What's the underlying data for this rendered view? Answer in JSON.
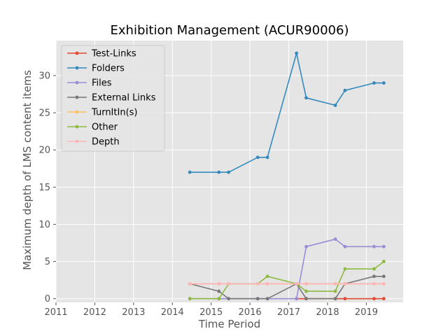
{
  "chart_data": {
    "type": "line",
    "title": "Exhibition Management (ACUR90006)",
    "xlabel": "Time Period",
    "ylabel": "Maximum depth of LMS content items",
    "xlim": [
      2011,
      2019.95
    ],
    "ylim": [
      -0.5,
      34.7
    ],
    "x_ticks": [
      2011,
      2012,
      2013,
      2014,
      2015,
      2016,
      2017,
      2018,
      2019
    ],
    "y_ticks": [
      0,
      5,
      10,
      15,
      20,
      25,
      30
    ],
    "grid": true,
    "legend_position": "top-left",
    "series": [
      {
        "name": "Test-Links",
        "color": "#E24A33",
        "x": [
          2017.2,
          2017.45,
          2018.2,
          2018.45,
          2019.2,
          2019.45
        ],
        "y": [
          0,
          0,
          0,
          0,
          0,
          0
        ]
      },
      {
        "name": "Folders",
        "color": "#348ABD",
        "x": [
          2014.45,
          2015.2,
          2015.45,
          2016.2,
          2016.45,
          2017.2,
          2017.45,
          2018.2,
          2018.45,
          2019.2,
          2019.45
        ],
        "y": [
          17,
          17,
          17,
          19,
          19,
          33,
          27,
          26,
          28,
          29,
          29
        ]
      },
      {
        "name": "Files",
        "color": "#988ED5",
        "x": [
          2014.45,
          2015.2,
          2015.45,
          2016.2,
          2016.45,
          2017.2,
          2017.45,
          2018.2,
          2018.45,
          2019.2,
          2019.45
        ],
        "y": [
          0,
          0,
          0,
          0,
          0,
          0,
          7,
          8,
          7,
          7,
          7
        ]
      },
      {
        "name": "External Links",
        "color": "#777777",
        "x": [
          2014.45,
          2015.2,
          2015.45,
          2016.2,
          2016.45,
          2017.2,
          2017.45,
          2018.2,
          2018.45,
          2019.2,
          2019.45
        ],
        "y": [
          2,
          1,
          0,
          0,
          0,
          2,
          0,
          0,
          2,
          3,
          3
        ]
      },
      {
        "name": "TurnItIn(s)",
        "color": "#FBC15E",
        "x": [
          2014.45,
          2015.2,
          2015.45,
          2016.2,
          2016.45,
          2017.2,
          2017.45,
          2018.2,
          2018.45,
          2019.2,
          2019.45
        ],
        "y": [
          2,
          2,
          2,
          2,
          2,
          2,
          2,
          2,
          2,
          2,
          2
        ]
      },
      {
        "name": "Other",
        "color": "#8EBA42",
        "x": [
          2014.45,
          2015.2,
          2015.45,
          2016.2,
          2016.45,
          2017.2,
          2017.45,
          2018.2,
          2018.45,
          2019.2,
          2019.45
        ],
        "y": [
          0,
          0,
          2,
          2,
          3,
          2,
          1,
          1,
          4,
          4,
          5
        ]
      },
      {
        "name": "Depth",
        "color": "#FFB5B8",
        "x": [
          2014.45,
          2015.2,
          2015.45,
          2016.2,
          2016.45,
          2017.2,
          2017.45,
          2018.2,
          2018.45,
          2019.2,
          2019.45
        ],
        "y": [
          2,
          2,
          2,
          2,
          2,
          2,
          2,
          2,
          2,
          2,
          2
        ]
      }
    ]
  }
}
